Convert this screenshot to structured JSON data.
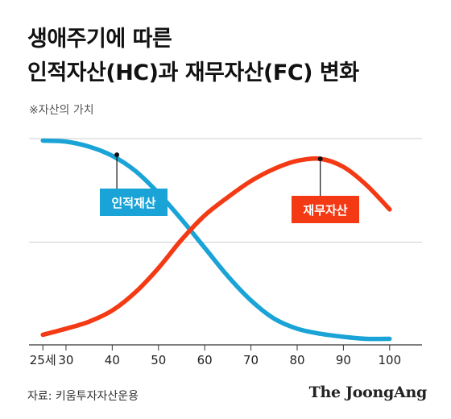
{
  "header": {
    "title_line1": "생애주기에 따른",
    "title_line2": "인적자산(HC)과 재무자산(FC) 변화",
    "note": "※자산의 가치"
  },
  "footer": {
    "source": "자료: 키움투자자산운용",
    "brand": "The JoongAng"
  },
  "chart_data": {
    "type": "line",
    "title": "생애주기에 따른 인적자산(HC)과 재무자산(FC) 변화",
    "subtitle": "※자산의 가치",
    "x_tick_labels": [
      "25세",
      "30",
      "40",
      "50",
      "60",
      "70",
      "80",
      "90",
      "100"
    ],
    "x_ticks": [
      25,
      30,
      40,
      50,
      60,
      70,
      80,
      90,
      100
    ],
    "xlim": [
      22,
      107
    ],
    "ylim": [
      0,
      100
    ],
    "grid": true,
    "series": [
      {
        "name": "인적재산",
        "color": "#1aa3d6",
        "x": [
          25,
          30,
          35,
          40,
          45,
          50,
          55,
          60,
          65,
          70,
          75,
          80,
          85,
          90,
          95,
          100
        ],
        "y": [
          99,
          98.5,
          96,
          91.5,
          84,
          73,
          60,
          46,
          32,
          20,
          11,
          6,
          3.5,
          2,
          1,
          1
        ]
      },
      {
        "name": "재무자산",
        "color": "#f43a14",
        "x": [
          25,
          30,
          35,
          40,
          45,
          50,
          55,
          60,
          65,
          70,
          75,
          80,
          85,
          90,
          95,
          100
        ],
        "y": [
          3,
          6,
          9.5,
          15,
          24,
          36,
          50,
          62,
          71,
          79,
          85,
          89,
          90,
          86,
          77,
          65
        ]
      }
    ],
    "annotations": [
      {
        "label": "인적재산",
        "series": 0,
        "x": 41,
        "y": 92,
        "color": "#1aa3d6"
      },
      {
        "label": "재무자산",
        "series": 1,
        "x": 85,
        "y": 90,
        "color": "#f43a14"
      }
    ]
  }
}
